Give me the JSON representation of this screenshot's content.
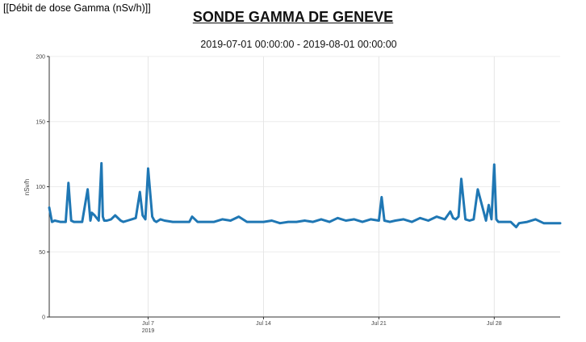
{
  "header": {
    "label": "[[Débit de dose Gamma (nSv/h)]]"
  },
  "chart_data": {
    "type": "line",
    "title": "SONDE GAMMA DE GENEVE",
    "subtitle": "2019-07-01 00:00:00 - 2019-08-01 00:00:00",
    "ylabel": "nSv/h",
    "xlabel": "",
    "xlim": [
      "2019-07-01",
      "2019-08-01"
    ],
    "ylim": [
      0,
      200
    ],
    "yticks": [
      0,
      50,
      100,
      150,
      200
    ],
    "xticks": [
      {
        "x": "2019-07-07",
        "label": "Jul 7",
        "sublabel": "2019"
      },
      {
        "x": "2019-07-14",
        "label": "Jul 14"
      },
      {
        "x": "2019-07-21",
        "label": "Jul 21"
      },
      {
        "x": "2019-07-28",
        "label": "Jul 28"
      }
    ],
    "grid": "vertical",
    "line_color": "#1f77b4",
    "series": [
      {
        "x": [
          "2019-07-01 00:00",
          "2019-07-01 04:00",
          "2019-07-01 08:00",
          "2019-07-01 16:00",
          "2019-07-02 00:00",
          "2019-07-02 04:00",
          "2019-07-02 08:00",
          "2019-07-02 12:00",
          "2019-07-02 16:00",
          "2019-07-03 00:00",
          "2019-07-03 08:00",
          "2019-07-03 12:00",
          "2019-07-03 14:00",
          "2019-07-03 18:00",
          "2019-07-04 00:00",
          "2019-07-04 04:00",
          "2019-07-04 06:00",
          "2019-07-04 08:00",
          "2019-07-04 12:00",
          "2019-07-04 18:00",
          "2019-07-05 00:00",
          "2019-07-05 08:00",
          "2019-07-05 12:00",
          "2019-07-05 18:00",
          "2019-07-06 00:00",
          "2019-07-06 06:00",
          "2019-07-06 12:00",
          "2019-07-06 16:00",
          "2019-07-06 20:00",
          "2019-07-07 00:00",
          "2019-07-07 06:00",
          "2019-07-07 09:00",
          "2019-07-07 12:00",
          "2019-07-07 18:00",
          "2019-07-08 00:00",
          "2019-07-08 12:00",
          "2019-07-09 00:00",
          "2019-07-09 12:00",
          "2019-07-09 16:00",
          "2019-07-10 00:00",
          "2019-07-10 12:00",
          "2019-07-11 00:00",
          "2019-07-11 12:00",
          "2019-07-12 00:00",
          "2019-07-12 12:00",
          "2019-07-13 00:00",
          "2019-07-13 12:00",
          "2019-07-14 00:00",
          "2019-07-14 12:00",
          "2019-07-15 00:00",
          "2019-07-15 12:00",
          "2019-07-16 00:00",
          "2019-07-16 12:00",
          "2019-07-17 00:00",
          "2019-07-17 12:00",
          "2019-07-18 00:00",
          "2019-07-18 12:00",
          "2019-07-19 00:00",
          "2019-07-19 12:00",
          "2019-07-20 00:00",
          "2019-07-20 12:00",
          "2019-07-21 00:00",
          "2019-07-21 04:00",
          "2019-07-21 08:00",
          "2019-07-21 16:00",
          "2019-07-22 00:00",
          "2019-07-22 12:00",
          "2019-07-23 00:00",
          "2019-07-23 12:00",
          "2019-07-24 00:00",
          "2019-07-24 12:00",
          "2019-07-25 00:00",
          "2019-07-25 08:00",
          "2019-07-25 12:00",
          "2019-07-25 16:00",
          "2019-07-25 20:00",
          "2019-07-26 00:00",
          "2019-07-26 06:00",
          "2019-07-26 12:00",
          "2019-07-26 18:00",
          "2019-07-27 00:00",
          "2019-07-27 12:00",
          "2019-07-27 16:00",
          "2019-07-27 20:00",
          "2019-07-28 00:00",
          "2019-07-28 03:00",
          "2019-07-28 06:00",
          "2019-07-28 12:00",
          "2019-07-29 00:00",
          "2019-07-29 08:00",
          "2019-07-29 12:00",
          "2019-07-30 00:00",
          "2019-07-30 12:00",
          "2019-07-31 00:00",
          "2019-07-31 12:00",
          "2019-08-01 00:00"
        ],
        "y": [
          84,
          73,
          74,
          73,
          73,
          103,
          74,
          73,
          73,
          73,
          98,
          74,
          80,
          78,
          74,
          118,
          77,
          74,
          74,
          75,
          78,
          74,
          73,
          74,
          75,
          76,
          96,
          78,
          75,
          114,
          77,
          74,
          73,
          75,
          74,
          73,
          73,
          73,
          77,
          73,
          73,
          73,
          75,
          74,
          77,
          73,
          73,
          73,
          74,
          72,
          73,
          73,
          74,
          73,
          75,
          73,
          76,
          74,
          75,
          73,
          75,
          74,
          92,
          74,
          73,
          74,
          75,
          73,
          76,
          74,
          77,
          75,
          81,
          76,
          75,
          77,
          106,
          75,
          74,
          75,
          98,
          74,
          86,
          75,
          117,
          75,
          73,
          73,
          73,
          69,
          72,
          73,
          75,
          72,
          72,
          72
        ]
      }
    ]
  }
}
